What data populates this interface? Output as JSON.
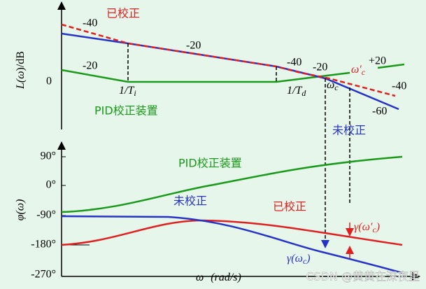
{
  "magnitude": {
    "axis_label": {
      "main": "L(",
      "var": "ω",
      "end": ")/dB"
    },
    "zero": "0",
    "slopes": [
      "-40",
      "-20",
      "-40",
      "-20",
      "+20",
      "-40",
      "-60",
      "-20"
    ],
    "corrected": "已校正",
    "uncorrected": "未校正",
    "pid": "PID校正装置",
    "ti": {
      "main": "1/T",
      "sub": "i"
    },
    "td": {
      "main": "1/T",
      "sub": "d"
    },
    "wc": {
      "main": "ω",
      "sub": "c"
    },
    "wc2": {
      "main": "ω′",
      "sub": "c"
    }
  },
  "phase": {
    "axis_label": "φ(ω)",
    "ticks": [
      "90°",
      "0°",
      "-90°",
      "-180°",
      "-270°"
    ],
    "pid": "PID校正装置",
    "uncorrected": "未校正",
    "corrected": "已校正",
    "gamma_wc2": {
      "main": "γ(ω′",
      "sub": "c",
      "end": ")"
    },
    "gamma_wc": {
      "main": "γ(ω",
      "sub": "c",
      "end": ")"
    },
    "x_label": {
      "var": "ω",
      "unit": "(rad/s)"
    }
  },
  "watermark": "CSDN @黄黄在深夜里"
}
